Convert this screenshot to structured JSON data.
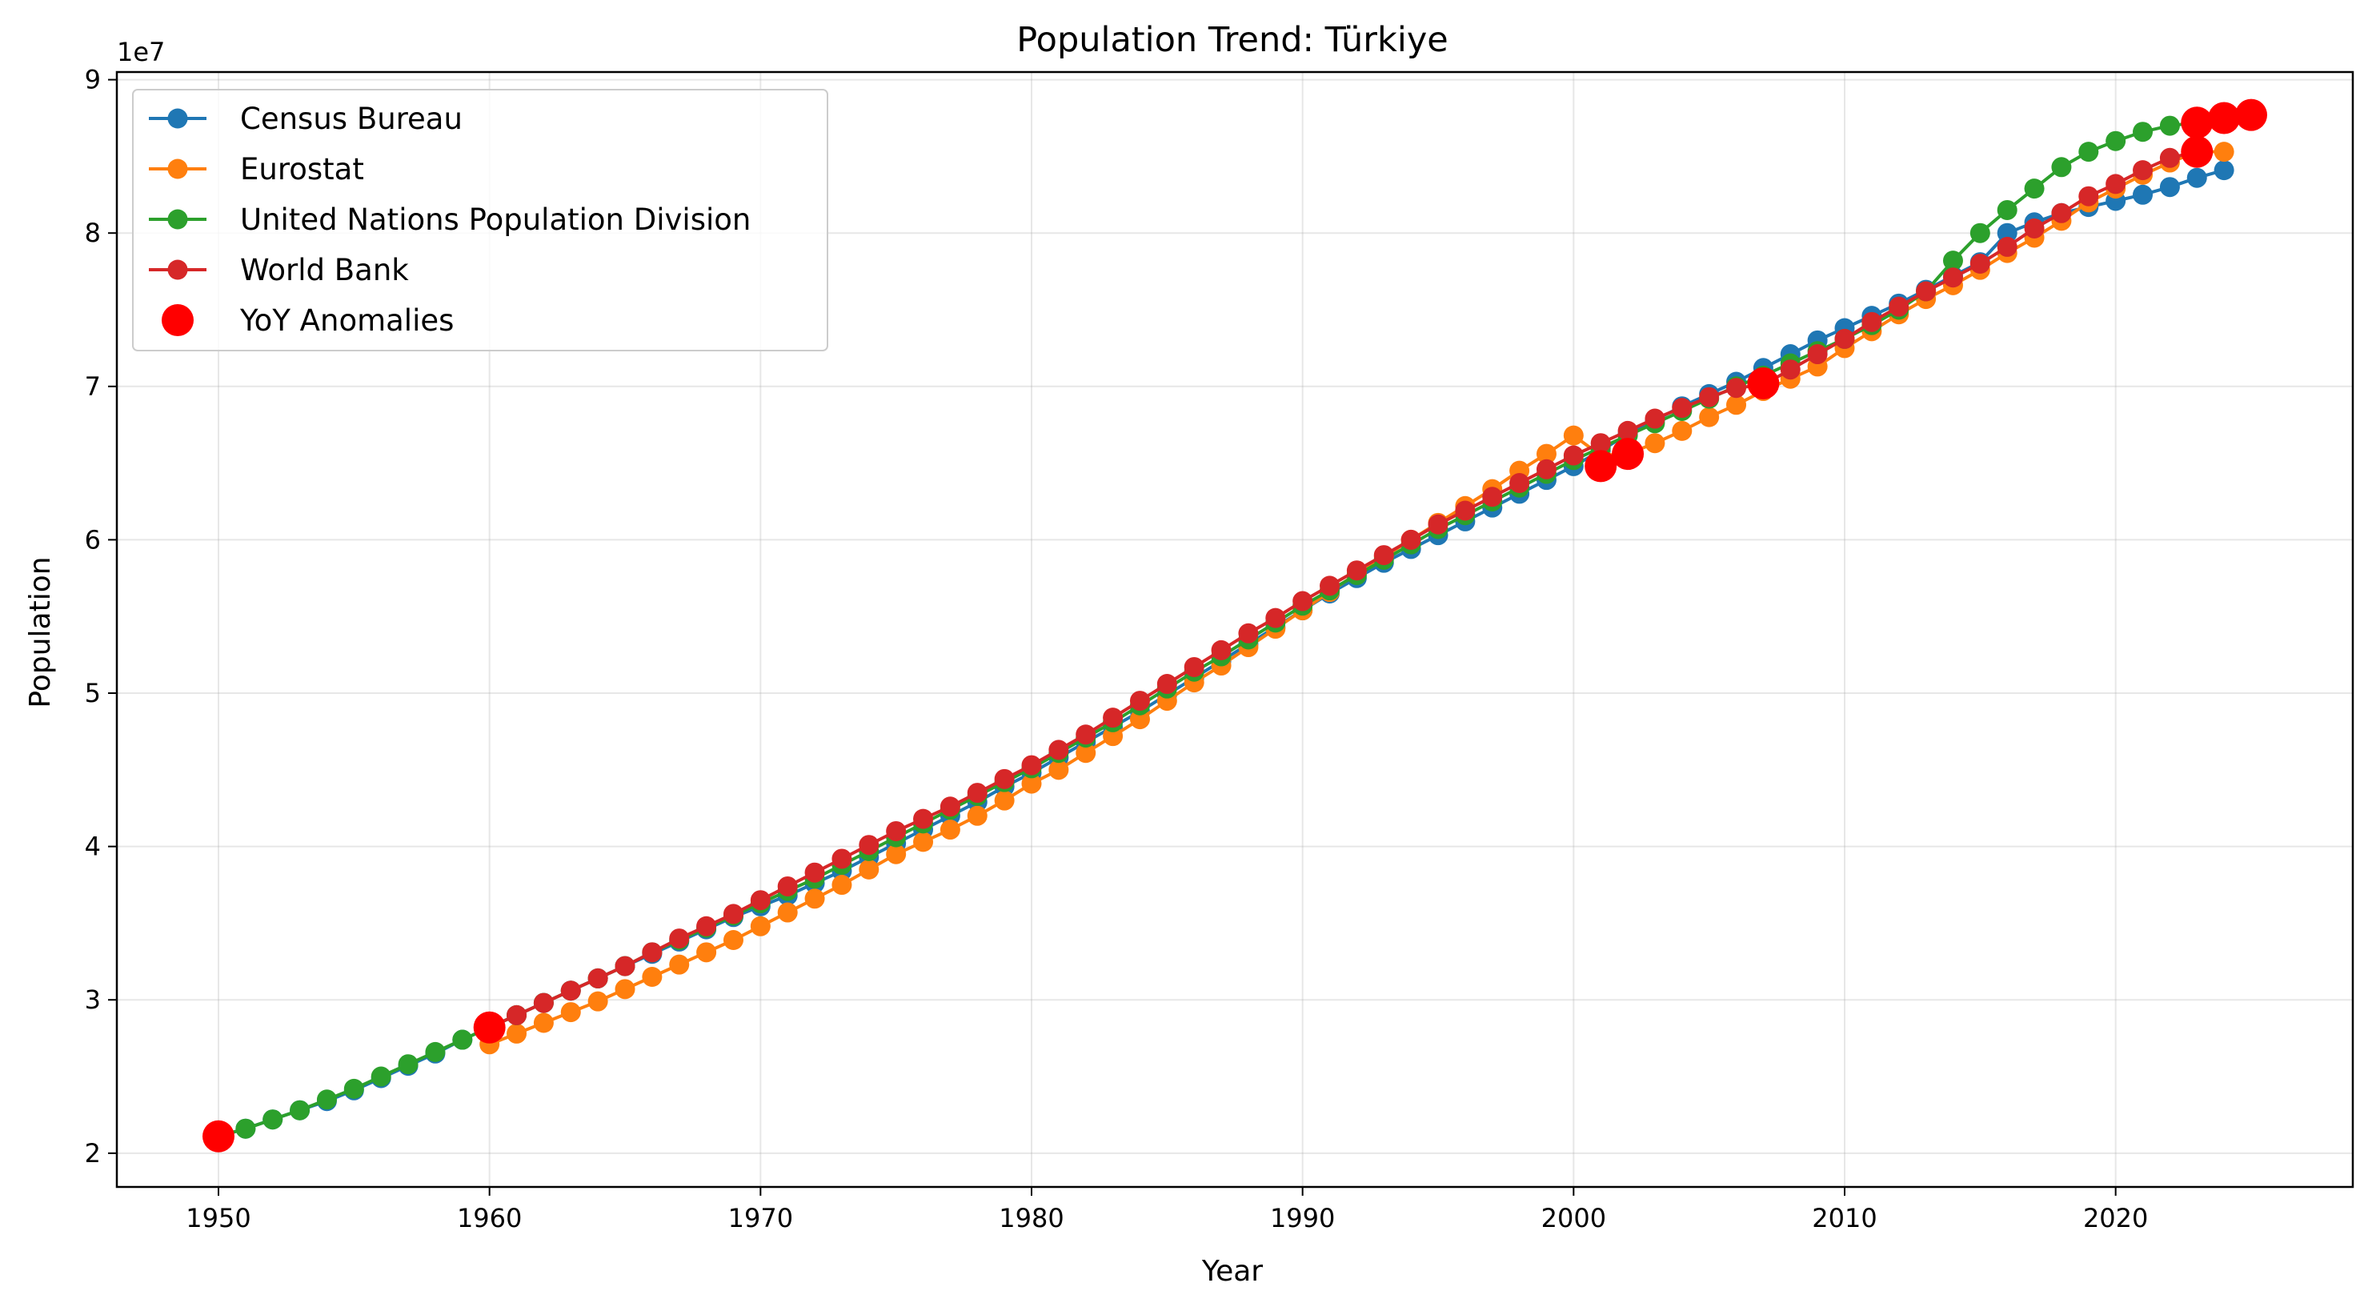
{
  "chart_data": {
    "type": "line",
    "title": "Population Trend: Türkiye",
    "xlabel": "Year",
    "ylabel": "Population",
    "y_offset_label": "1e7",
    "y_scale_factor": 10000000,
    "xlim": [
      1946.25,
      2028.75
    ],
    "ylim": [
      17800000,
      90500000
    ],
    "x_ticks": [
      1950,
      1960,
      1970,
      1980,
      1990,
      2000,
      2010,
      2020
    ],
    "y_ticks": [
      20000000,
      30000000,
      40000000,
      50000000,
      60000000,
      70000000,
      80000000,
      90000000
    ],
    "y_tick_labels": [
      "2",
      "3",
      "4",
      "5",
      "6",
      "7",
      "8",
      "9"
    ],
    "grid": true,
    "legend_position": "top-left",
    "series": [
      {
        "name": "Census Bureau",
        "color": "#1f77b4",
        "x": [
          1950,
          1951,
          1952,
          1953,
          1954,
          1955,
          1956,
          1957,
          1958,
          1959,
          1960,
          1961,
          1962,
          1963,
          1964,
          1965,
          1966,
          1967,
          1968,
          1969,
          1970,
          1971,
          1972,
          1973,
          1974,
          1975,
          1976,
          1977,
          1978,
          1979,
          1980,
          1981,
          1982,
          1983,
          1984,
          1985,
          1986,
          1987,
          1988,
          1989,
          1990,
          1991,
          1992,
          1993,
          1994,
          1995,
          1996,
          1997,
          1998,
          1999,
          2000,
          2001,
          2002,
          2003,
          2004,
          2005,
          2006,
          2007,
          2008,
          2009,
          2010,
          2011,
          2012,
          2013,
          2014,
          2015,
          2016,
          2017,
          2018,
          2019,
          2020,
          2021,
          2022,
          2023,
          2024
        ],
        "y": [
          21100000,
          21600000,
          22200000,
          22800000,
          23400000,
          24100000,
          24900000,
          25700000,
          26500000,
          27400000,
          28200000,
          29000000,
          29800000,
          30600000,
          31400000,
          32200000,
          33000000,
          33800000,
          34600000,
          35400000,
          36100000,
          36800000,
          37600000,
          38400000,
          39300000,
          40200000,
          41100000,
          42000000,
          42900000,
          43900000,
          44800000,
          45800000,
          46800000,
          47800000,
          48800000,
          49900000,
          51000000,
          52100000,
          53200000,
          54300000,
          55400000,
          56500000,
          57500000,
          58500000,
          59400000,
          60300000,
          61200000,
          62100000,
          63000000,
          63900000,
          64800000,
          65800000,
          66900000,
          67800000,
          68700000,
          69500000,
          70300000,
          71200000,
          72100000,
          73000000,
          73800000,
          74600000,
          75400000,
          76300000,
          77200000,
          78100000,
          80000000,
          80700000,
          81300000,
          81700000,
          82100000,
          82500000,
          83000000,
          83600000,
          84100000
        ]
      },
      {
        "name": "Eurostat",
        "color": "#ff7f0e",
        "x": [
          1960,
          1961,
          1962,
          1963,
          1964,
          1965,
          1966,
          1967,
          1968,
          1969,
          1970,
          1971,
          1972,
          1973,
          1974,
          1975,
          1976,
          1977,
          1978,
          1979,
          1980,
          1981,
          1982,
          1983,
          1984,
          1985,
          1986,
          1987,
          1988,
          1989,
          1990,
          1991,
          1992,
          1993,
          1994,
          1995,
          1996,
          1997,
          1998,
          1999,
          2000,
          2001,
          2002,
          2003,
          2004,
          2005,
          2006,
          2007,
          2008,
          2009,
          2010,
          2011,
          2012,
          2013,
          2014,
          2015,
          2016,
          2017,
          2018,
          2019,
          2020,
          2021,
          2022,
          2023,
          2024
        ],
        "y": [
          27100000,
          27800000,
          28500000,
          29200000,
          29900000,
          30700000,
          31500000,
          32300000,
          33100000,
          33900000,
          34800000,
          35700000,
          36600000,
          37500000,
          38500000,
          39500000,
          40300000,
          41100000,
          42000000,
          43000000,
          44100000,
          45000000,
          46100000,
          47200000,
          48300000,
          49500000,
          50700000,
          51800000,
          53000000,
          54200000,
          55400000,
          56600000,
          57800000,
          58900000,
          60000000,
          61100000,
          62200000,
          63300000,
          64500000,
          65600000,
          66800000,
          65500000,
          65600000,
          66300000,
          67100000,
          68000000,
          68800000,
          69700000,
          70500000,
          71300000,
          72500000,
          73600000,
          74700000,
          75700000,
          76600000,
          77600000,
          78700000,
          79700000,
          80800000,
          82000000,
          82900000,
          83800000,
          84600000,
          85300000,
          85300000
        ]
      },
      {
        "name": "United Nations Population Division",
        "color": "#2ca02c",
        "x": [
          1950,
          1951,
          1952,
          1953,
          1954,
          1955,
          1956,
          1957,
          1958,
          1959,
          1960,
          1961,
          1962,
          1963,
          1964,
          1965,
          1966,
          1967,
          1968,
          1969,
          1970,
          1971,
          1972,
          1973,
          1974,
          1975,
          1976,
          1977,
          1978,
          1979,
          1980,
          1981,
          1982,
          1983,
          1984,
          1985,
          1986,
          1987,
          1988,
          1989,
          1990,
          1991,
          1992,
          1993,
          1994,
          1995,
          1996,
          1997,
          1998,
          1999,
          2000,
          2001,
          2002,
          2003,
          2004,
          2005,
          2006,
          2007,
          2008,
          2009,
          2010,
          2011,
          2012,
          2013,
          2014,
          2015,
          2016,
          2017,
          2018,
          2019,
          2020,
          2021,
          2022,
          2023,
          2024,
          2025
        ],
        "y": [
          21100000,
          21600000,
          22200000,
          22800000,
          23500000,
          24200000,
          25000000,
          25800000,
          26600000,
          27400000,
          28200000,
          29000000,
          29800000,
          30600000,
          31400000,
          32200000,
          33100000,
          33900000,
          34700000,
          35500000,
          36300000,
          37100000,
          37900000,
          38800000,
          39700000,
          40600000,
          41500000,
          42400000,
          43300000,
          44200000,
          45100000,
          46100000,
          47100000,
          48100000,
          49200000,
          50300000,
          51400000,
          52400000,
          53500000,
          54600000,
          55700000,
          56700000,
          57700000,
          58700000,
          59700000,
          60700000,
          61600000,
          62500000,
          63400000,
          64300000,
          65200000,
          66000000,
          66800000,
          67600000,
          68400000,
          69200000,
          70000000,
          70700000,
          71500000,
          72300000,
          73100000,
          74000000,
          75000000,
          76200000,
          78200000,
          80000000,
          81500000,
          82900000,
          84300000,
          85300000,
          86000000,
          86600000,
          87000000,
          87200000,
          87500000,
          87700000
        ]
      },
      {
        "name": "World Bank",
        "color": "#d62728",
        "x": [
          1960,
          1961,
          1962,
          1963,
          1964,
          1965,
          1966,
          1967,
          1968,
          1969,
          1970,
          1971,
          1972,
          1973,
          1974,
          1975,
          1976,
          1977,
          1978,
          1979,
          1980,
          1981,
          1982,
          1983,
          1984,
          1985,
          1986,
          1987,
          1988,
          1989,
          1990,
          1991,
          1992,
          1993,
          1994,
          1995,
          1996,
          1997,
          1998,
          1999,
          2000,
          2001,
          2002,
          2003,
          2004,
          2005,
          2006,
          2007,
          2008,
          2009,
          2010,
          2011,
          2012,
          2013,
          2014,
          2015,
          2016,
          2017,
          2018,
          2019,
          2020,
          2021,
          2022,
          2023
        ],
        "y": [
          28200000,
          29000000,
          29800000,
          30600000,
          31400000,
          32200000,
          33100000,
          34000000,
          34800000,
          35600000,
          36500000,
          37400000,
          38300000,
          39200000,
          40100000,
          41000000,
          41800000,
          42600000,
          43500000,
          44400000,
          45300000,
          46300000,
          47300000,
          48400000,
          49500000,
          50600000,
          51700000,
          52800000,
          53900000,
          54900000,
          56000000,
          57000000,
          58000000,
          59000000,
          60000000,
          61000000,
          61900000,
          62800000,
          63700000,
          64600000,
          65500000,
          66300000,
          67100000,
          67900000,
          68600000,
          69300000,
          69900000,
          70100000,
          71100000,
          72100000,
          73100000,
          74200000,
          75200000,
          76200000,
          77100000,
          78000000,
          79100000,
          80300000,
          81300000,
          82400000,
          83200000,
          84100000,
          84900000,
          85300000
        ]
      }
    ],
    "anomalies": {
      "name": "YoY Anomalies",
      "color": "#ff0000",
      "x": [
        1950,
        1960,
        2001,
        2002,
        2007,
        2023,
        2023,
        2024,
        2025
      ],
      "y": [
        21100000,
        28200000,
        64800000,
        65600000,
        70200000,
        85300000,
        87200000,
        87500000,
        87700000
      ]
    }
  }
}
